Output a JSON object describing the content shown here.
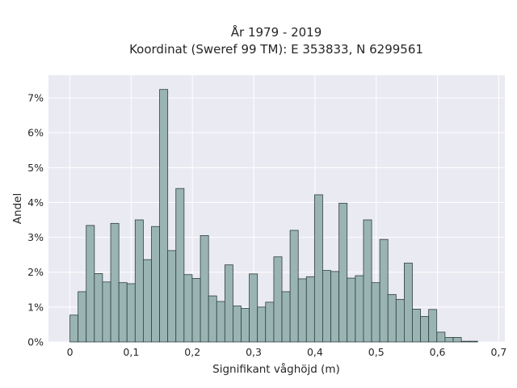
{
  "chart_data": {
    "type": "bar",
    "title": [
      "År 1979 - 2019",
      "Koordinat (Sweref 99 TM): E 353833, N 6299561"
    ],
    "xlabel": "Signifikant våghöjd (m)",
    "ylabel": "Andel",
    "xlim": [
      -0.035,
      0.71
    ],
    "ylim": [
      0,
      0.0765
    ],
    "bin_width": 0.01331,
    "xticks": [
      0,
      0.1,
      0.2,
      0.3,
      0.4,
      0.5,
      0.6,
      0.7
    ],
    "xtick_labels": [
      "0",
      "0,1",
      "0,2",
      "0,3",
      "0,4",
      "0,5",
      "0,6",
      "0,7"
    ],
    "yticks": [
      0,
      0.01,
      0.02,
      0.03,
      0.04,
      0.05,
      0.06,
      0.07
    ],
    "ytick_labels": [
      "0%",
      "1%",
      "2%",
      "3%",
      "4%",
      "5%",
      "6%",
      "7%"
    ],
    "bin_starts": [
      0,
      0.0133,
      0.0266,
      0.0399,
      0.0532,
      0.0666,
      0.0799,
      0.0932,
      0.1065,
      0.1198,
      0.1331,
      0.1464,
      0.1597,
      0.173,
      0.1863,
      0.1997,
      0.213,
      0.2263,
      0.2396,
      0.2529,
      0.2662,
      0.2795,
      0.2928,
      0.3061,
      0.3194,
      0.3328,
      0.3461,
      0.3594,
      0.3727,
      0.386,
      0.3993,
      0.4126,
      0.4259,
      0.4392,
      0.4525,
      0.4659,
      0.4792,
      0.4925,
      0.5058,
      0.5191,
      0.5324,
      0.5457,
      0.559,
      0.5723,
      0.5856,
      0.599,
      0.6123,
      0.6256,
      0.6389,
      0.6522,
      0.6655
    ],
    "values": [
      0.0077,
      0.0144,
      0.0334,
      0.0196,
      0.0172,
      0.034,
      0.017,
      0.0167,
      0.035,
      0.0236,
      0.0331,
      0.0724,
      0.0262,
      0.044,
      0.0193,
      0.0182,
      0.0305,
      0.0132,
      0.0116,
      0.0221,
      0.0103,
      0.0096,
      0.0195,
      0.01,
      0.0114,
      0.0244,
      0.0144,
      0.032,
      0.0181,
      0.0187,
      0.0422,
      0.0205,
      0.0202,
      0.0398,
      0.0183,
      0.019,
      0.035,
      0.017,
      0.0294,
      0.0136,
      0.0122,
      0.0226,
      0.0094,
      0.0073,
      0.0093,
      0.0028,
      0.0013,
      0.0013,
      0.0002,
      0.0002,
      0.0
    ]
  }
}
